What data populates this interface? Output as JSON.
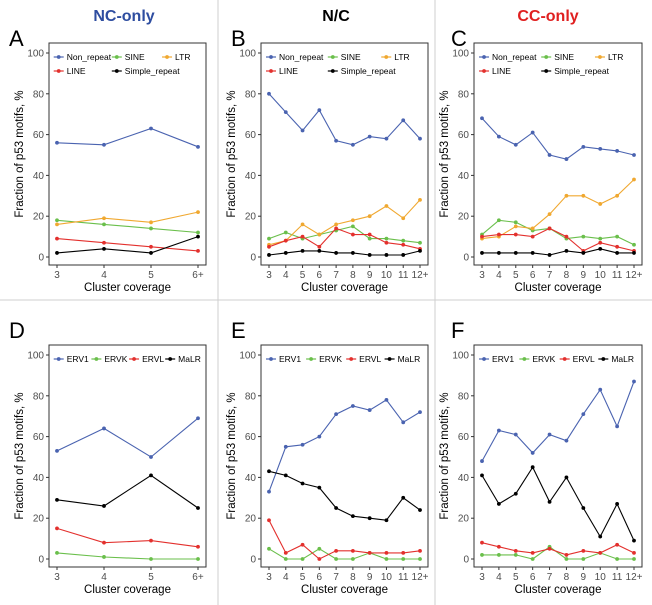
{
  "colors": {
    "blue": "#4a63b0",
    "green": "#6abf4b",
    "orange": "#f0a830",
    "red": "#e3302d",
    "black": "#000000",
    "title_blue": "#2e4da0",
    "title_black": "#000000",
    "title_red": "#e02020"
  },
  "column_titles": [
    {
      "text": "NC-only",
      "color": "#2e4da0"
    },
    {
      "text": "N/C",
      "color": "#000000"
    },
    {
      "text": "CC-only",
      "color": "#e02020"
    }
  ],
  "chart_data": [
    {
      "panel": "A",
      "type": "line",
      "xlabel": "Cluster coverage",
      "ylabel": "Fraction of p53 motifs, %",
      "categories": [
        "3",
        "4",
        "5",
        "6+"
      ],
      "ylim": [
        0,
        100
      ],
      "yticks": [
        0,
        20,
        40,
        60,
        80,
        100
      ],
      "legend_rows": [
        [
          "Non_repeat",
          "SINE",
          "LTR"
        ],
        [
          "LINE",
          "Simple_repeat"
        ]
      ],
      "series": [
        {
          "name": "Non_repeat",
          "color": "#4a63b0",
          "values": [
            56,
            55,
            63,
            54
          ]
        },
        {
          "name": "SINE",
          "color": "#6abf4b",
          "values": [
            18,
            16,
            14,
            12
          ]
        },
        {
          "name": "LTR",
          "color": "#f0a830",
          "values": [
            16,
            19,
            17,
            22
          ]
        },
        {
          "name": "LINE",
          "color": "#e3302d",
          "values": [
            9,
            7,
            5,
            3
          ]
        },
        {
          "name": "Simple_repeat",
          "color": "#000000",
          "values": [
            2,
            4,
            2,
            10
          ]
        }
      ]
    },
    {
      "panel": "B",
      "type": "line",
      "xlabel": "Cluster coverage",
      "ylabel": "Fraction of p53 motifs, %",
      "categories": [
        "3",
        "4",
        "5",
        "6",
        "7",
        "8",
        "9",
        "10",
        "11",
        "12+"
      ],
      "ylim": [
        0,
        100
      ],
      "yticks": [
        0,
        20,
        40,
        60,
        80,
        100
      ],
      "legend_rows": [
        [
          "Non_repeat",
          "SINE",
          "LTR"
        ],
        [
          "LINE",
          "Simple_repeat"
        ]
      ],
      "series": [
        {
          "name": "Non_repeat",
          "color": "#4a63b0",
          "values": [
            80,
            71,
            62,
            72,
            57,
            55,
            59,
            58,
            67,
            58
          ]
        },
        {
          "name": "SINE",
          "color": "#6abf4b",
          "values": [
            9,
            12,
            9,
            11,
            13,
            15,
            9,
            9,
            8,
            7
          ]
        },
        {
          "name": "LTR",
          "color": "#f0a830",
          "values": [
            6,
            8,
            16,
            11,
            16,
            18,
            20,
            25,
            19,
            28
          ]
        },
        {
          "name": "LINE",
          "color": "#e3302d",
          "values": [
            5,
            8,
            10,
            5,
            14,
            11,
            11,
            7,
            6,
            4
          ]
        },
        {
          "name": "Simple_repeat",
          "color": "#000000",
          "values": [
            1,
            2,
            3,
            3,
            2,
            2,
            1,
            1,
            1,
            3
          ]
        }
      ]
    },
    {
      "panel": "C",
      "type": "line",
      "xlabel": "Cluster coverage",
      "ylabel": "Fraction of p53 motifs, %",
      "categories": [
        "3",
        "4",
        "5",
        "6",
        "7",
        "8",
        "9",
        "10",
        "11",
        "12+"
      ],
      "ylim": [
        0,
        100
      ],
      "yticks": [
        0,
        20,
        40,
        60,
        80,
        100
      ],
      "legend_rows": [
        [
          "Non_repeat",
          "SINE",
          "LTR"
        ],
        [
          "LINE",
          "Simple_repeat"
        ]
      ],
      "series": [
        {
          "name": "Non_repeat",
          "color": "#4a63b0",
          "values": [
            68,
            59,
            55,
            61,
            50,
            48,
            54,
            53,
            52,
            50
          ]
        },
        {
          "name": "SINE",
          "color": "#6abf4b",
          "values": [
            11,
            18,
            17,
            13,
            14,
            9,
            10,
            9,
            10,
            6
          ]
        },
        {
          "name": "LTR",
          "color": "#f0a830",
          "values": [
            9,
            10,
            15,
            14,
            21,
            30,
            30,
            26,
            30,
            38
          ]
        },
        {
          "name": "LINE",
          "color": "#e3302d",
          "values": [
            10,
            11,
            11,
            10,
            14,
            10,
            3,
            7,
            5,
            3
          ]
        },
        {
          "name": "Simple_repeat",
          "color": "#000000",
          "values": [
            2,
            2,
            2,
            2,
            1,
            3,
            2,
            4,
            2,
            2
          ]
        }
      ]
    },
    {
      "panel": "D",
      "type": "line",
      "xlabel": "Cluster coverage",
      "ylabel": "Fraction of p53 motifs, %",
      "categories": [
        "3",
        "4",
        "5",
        "6+"
      ],
      "ylim": [
        0,
        100
      ],
      "yticks": [
        0,
        20,
        40,
        60,
        80,
        100
      ],
      "legend_rows": [
        [
          "ERV1",
          "ERVK",
          "ERVL",
          "MaLR"
        ]
      ],
      "series": [
        {
          "name": "ERV1",
          "color": "#4a63b0",
          "values": [
            53,
            64,
            50,
            69
          ]
        },
        {
          "name": "ERVK",
          "color": "#6abf4b",
          "values": [
            3,
            1,
            0,
            0
          ]
        },
        {
          "name": "ERVL",
          "color": "#e3302d",
          "values": [
            15,
            8,
            9,
            6
          ]
        },
        {
          "name": "MaLR",
          "color": "#000000",
          "values": [
            29,
            26,
            41,
            25
          ]
        }
      ]
    },
    {
      "panel": "E",
      "type": "line",
      "xlabel": "Cluster coverage",
      "ylabel": "Fraction of p53 motifs, %",
      "categories": [
        "3",
        "4",
        "5",
        "6",
        "7",
        "8",
        "9",
        "10",
        "11",
        "12+"
      ],
      "ylim": [
        0,
        100
      ],
      "yticks": [
        0,
        20,
        40,
        60,
        80,
        100
      ],
      "legend_rows": [
        [
          "ERV1",
          "ERVK",
          "ERVL",
          "MaLR"
        ]
      ],
      "series": [
        {
          "name": "ERV1",
          "color": "#4a63b0",
          "values": [
            33,
            55,
            56,
            60,
            71,
            75,
            73,
            78,
            67,
            72
          ]
        },
        {
          "name": "ERVK",
          "color": "#6abf4b",
          "values": [
            5,
            0,
            0,
            5,
            0,
            0,
            3,
            0,
            0,
            0
          ]
        },
        {
          "name": "ERVL",
          "color": "#e3302d",
          "values": [
            19,
            3,
            7,
            0,
            4,
            4,
            3,
            3,
            3,
            4
          ]
        },
        {
          "name": "MaLR",
          "color": "#000000",
          "values": [
            43,
            41,
            37,
            35,
            25,
            21,
            20,
            19,
            30,
            24
          ]
        }
      ]
    },
    {
      "panel": "F",
      "type": "line",
      "xlabel": "Cluster coverage",
      "ylabel": "Fraction of p53 motifs, %",
      "categories": [
        "3",
        "4",
        "5",
        "6",
        "7",
        "8",
        "9",
        "10",
        "11",
        "12+"
      ],
      "ylim": [
        0,
        100
      ],
      "yticks": [
        0,
        20,
        40,
        60,
        80,
        100
      ],
      "legend_rows": [
        [
          "ERV1",
          "ERVK",
          "ERVL",
          "MaLR"
        ]
      ],
      "series": [
        {
          "name": "ERV1",
          "color": "#4a63b0",
          "values": [
            48,
            63,
            61,
            52,
            61,
            58,
            71,
            83,
            65,
            87
          ]
        },
        {
          "name": "ERVK",
          "color": "#6abf4b",
          "values": [
            2,
            2,
            2,
            0,
            6,
            0,
            0,
            3,
            0,
            0
          ]
        },
        {
          "name": "ERVL",
          "color": "#e3302d",
          "values": [
            8,
            6,
            4,
            3,
            5,
            2,
            4,
            3,
            7,
            3
          ]
        },
        {
          "name": "MaLR",
          "color": "#000000",
          "values": [
            41,
            27,
            32,
            45,
            28,
            40,
            25,
            11,
            27,
            9
          ]
        }
      ]
    }
  ]
}
